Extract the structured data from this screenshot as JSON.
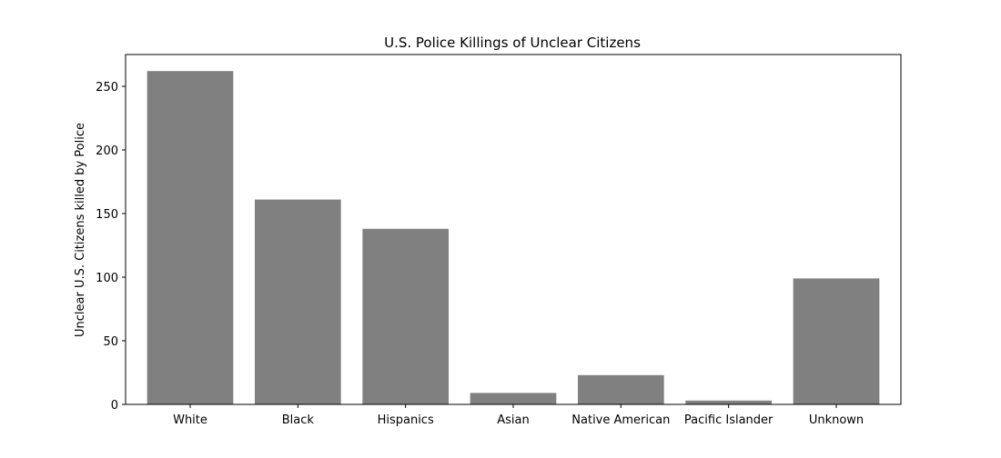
{
  "chart_data": {
    "type": "bar",
    "title": "U.S. Police Killings of Unclear Citizens",
    "xlabel": "",
    "ylabel": "Unclear U.S. Citizens killed by Police",
    "categories": [
      "White",
      "Black",
      "Hispanics",
      "Asian",
      "Native American",
      "Pacific Islander",
      "Unknown"
    ],
    "values": [
      262,
      161,
      138,
      9,
      23,
      3,
      99
    ],
    "ylim": [
      0,
      275
    ],
    "yticks": [
      0,
      50,
      100,
      150,
      200,
      250
    ],
    "bar_color": "#808080",
    "grid": false
  }
}
